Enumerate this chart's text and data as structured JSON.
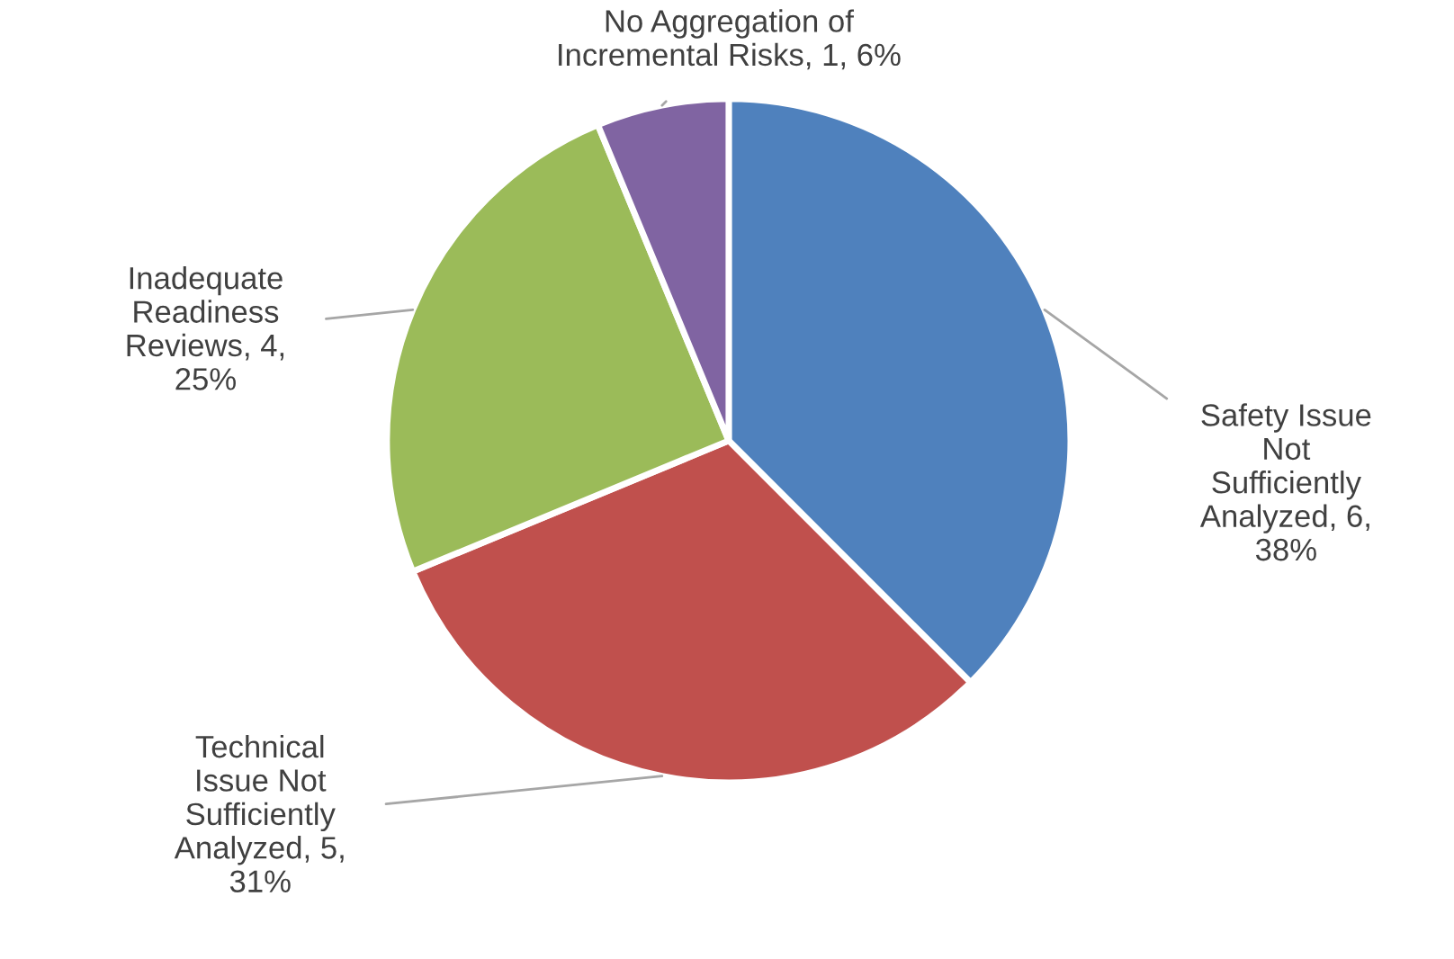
{
  "chart_data": {
    "type": "pie",
    "categories": [
      "Safety Issue\nNot\nSufficiently\nAnalyzed",
      "Technical\nIssue Not\nSufficiently\nAnalyzed",
      "Inadequate\nReadiness\nReviews",
      "No Aggregation of\nIncremental Risks"
    ],
    "values": [
      6,
      5,
      4,
      1
    ],
    "value_labels": [
      "6,\n38%",
      "5,\n31%",
      "4,\n25%",
      "1, 6%"
    ],
    "colors": [
      "#4f81bd",
      "#c0504d",
      "#9bbb59",
      "#8064a2"
    ],
    "legend": false
  }
}
